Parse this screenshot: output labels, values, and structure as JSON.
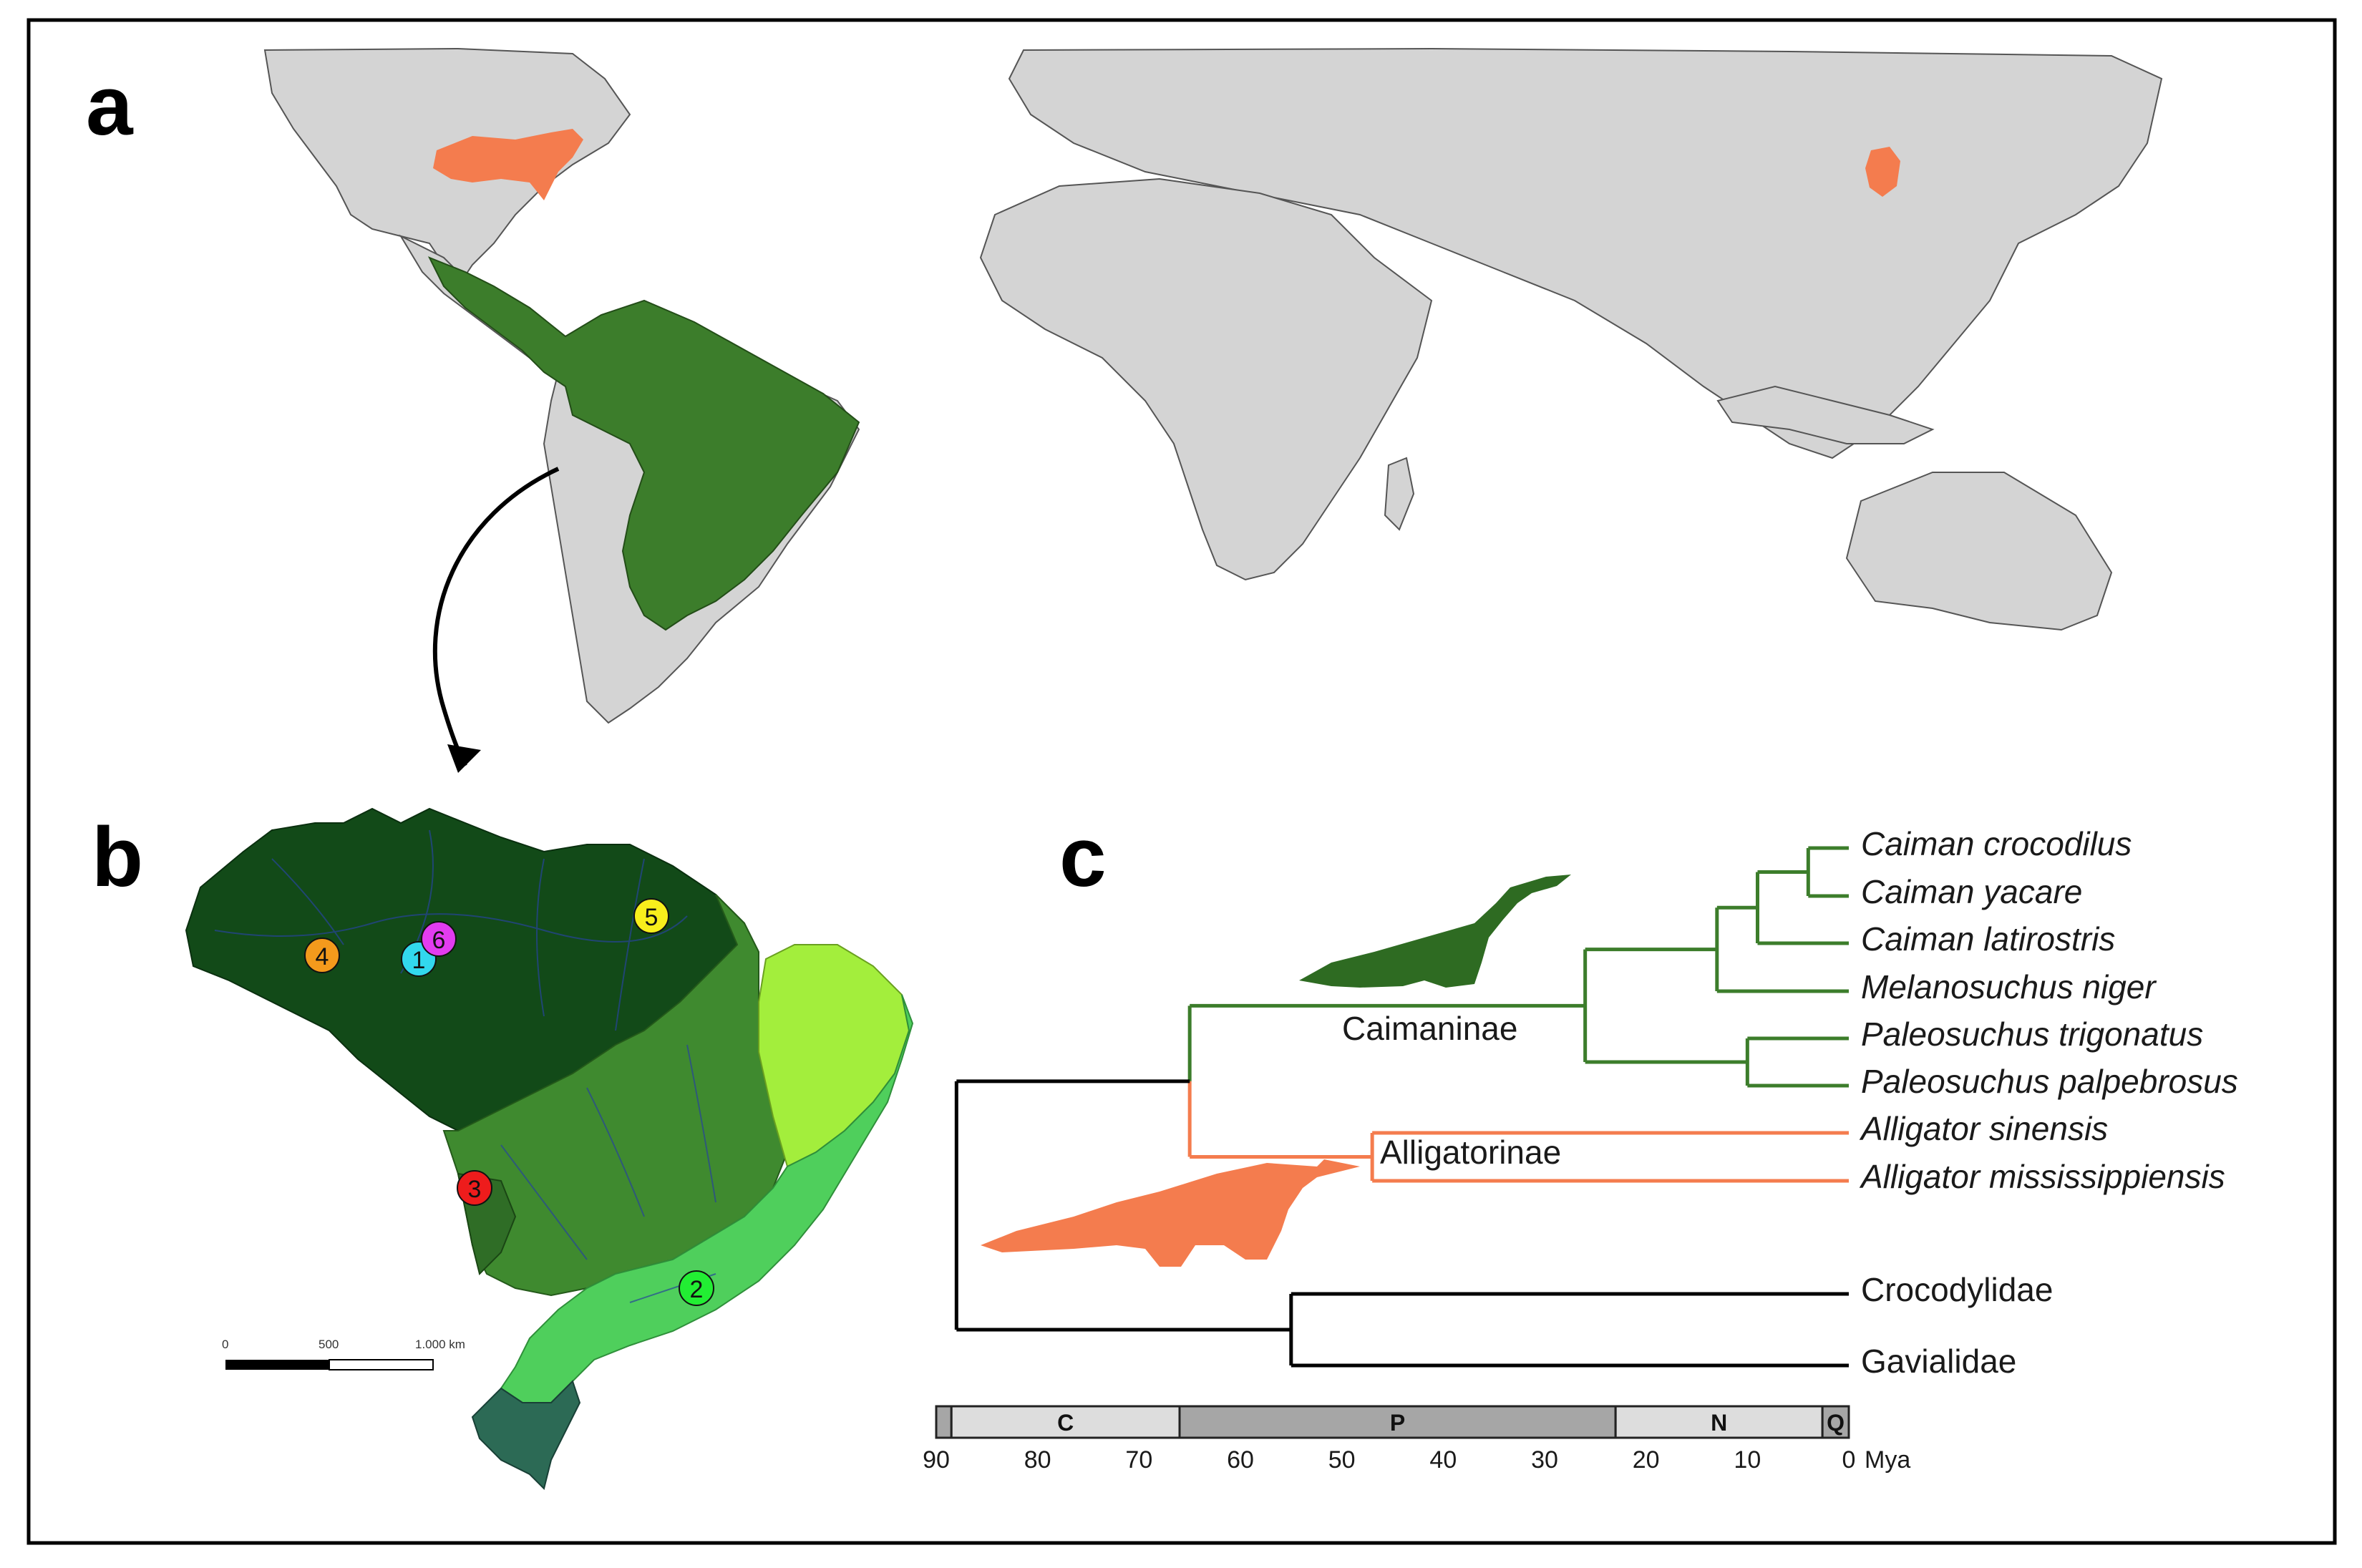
{
  "panels": {
    "a": "a",
    "b": "b",
    "c": "c"
  },
  "colors": {
    "caimaninae": "#3c7d2b",
    "alligatorinae": "#f47c4e",
    "land": "#d4d4d4",
    "amazon": "#124a18",
    "cerrado": "#3f8a2f",
    "caatinga": "#a3ee3c",
    "atlantic_forest": "#4fcf5c",
    "pampa": "#2c6a55",
    "pantanal": "#2f6d26"
  },
  "brazil_sites": [
    {
      "num": "1",
      "color": "#32d8ee"
    },
    {
      "num": "2",
      "color": "#22ee33"
    },
    {
      "num": "3",
      "color": "#ee1c1c"
    },
    {
      "num": "4",
      "color": "#f49a1c"
    },
    {
      "num": "5",
      "color": "#f8ee1c"
    },
    {
      "num": "6",
      "color": "#e23cf0"
    }
  ],
  "scale_bar": {
    "labels": [
      "0",
      "500",
      "1.000 km"
    ]
  },
  "phylogeny": {
    "clades": {
      "caimaninae": "Caimaninae",
      "alligatorinae": "Alligatorinae"
    },
    "species": [
      "Caiman crocodilus",
      "Caiman yacare",
      "Caiman latirostris",
      "Melanosuchus niger",
      "Paleosuchus trigonatus",
      "Paleosuchus palpebrosus",
      "Alligator sinensis",
      "Alligator mississippiensis"
    ],
    "families": [
      "Crocodylidae",
      "Gavialidae"
    ],
    "node_ages_mya": {
      "root": 88,
      "alligatoridae": 65,
      "crocodylidae_gavialidae": 55,
      "caimaninae": 26,
      "alligator": 47,
      "caiman_melanosuchus": 13,
      "caiman": 9,
      "caiman_crocodilus_yacare": 4,
      "paleosuchus": 10
    }
  },
  "timescale": {
    "unit": "Mya",
    "ticks": [
      "90",
      "80",
      "70",
      "60",
      "50",
      "40",
      "30",
      "20",
      "10",
      "0"
    ],
    "periods": [
      {
        "label": "",
        "start": 90,
        "end": 88.5,
        "color": "#a6a6a6"
      },
      {
        "label": "C",
        "start": 88.5,
        "end": 66,
        "color": "#dddddd"
      },
      {
        "label": "P",
        "start": 66,
        "end": 23,
        "color": "#a6a6a6"
      },
      {
        "label": "N",
        "start": 23,
        "end": 2.6,
        "color": "#dddddd"
      },
      {
        "label": "Q",
        "start": 2.6,
        "end": 0,
        "color": "#a6a6a6"
      }
    ]
  }
}
